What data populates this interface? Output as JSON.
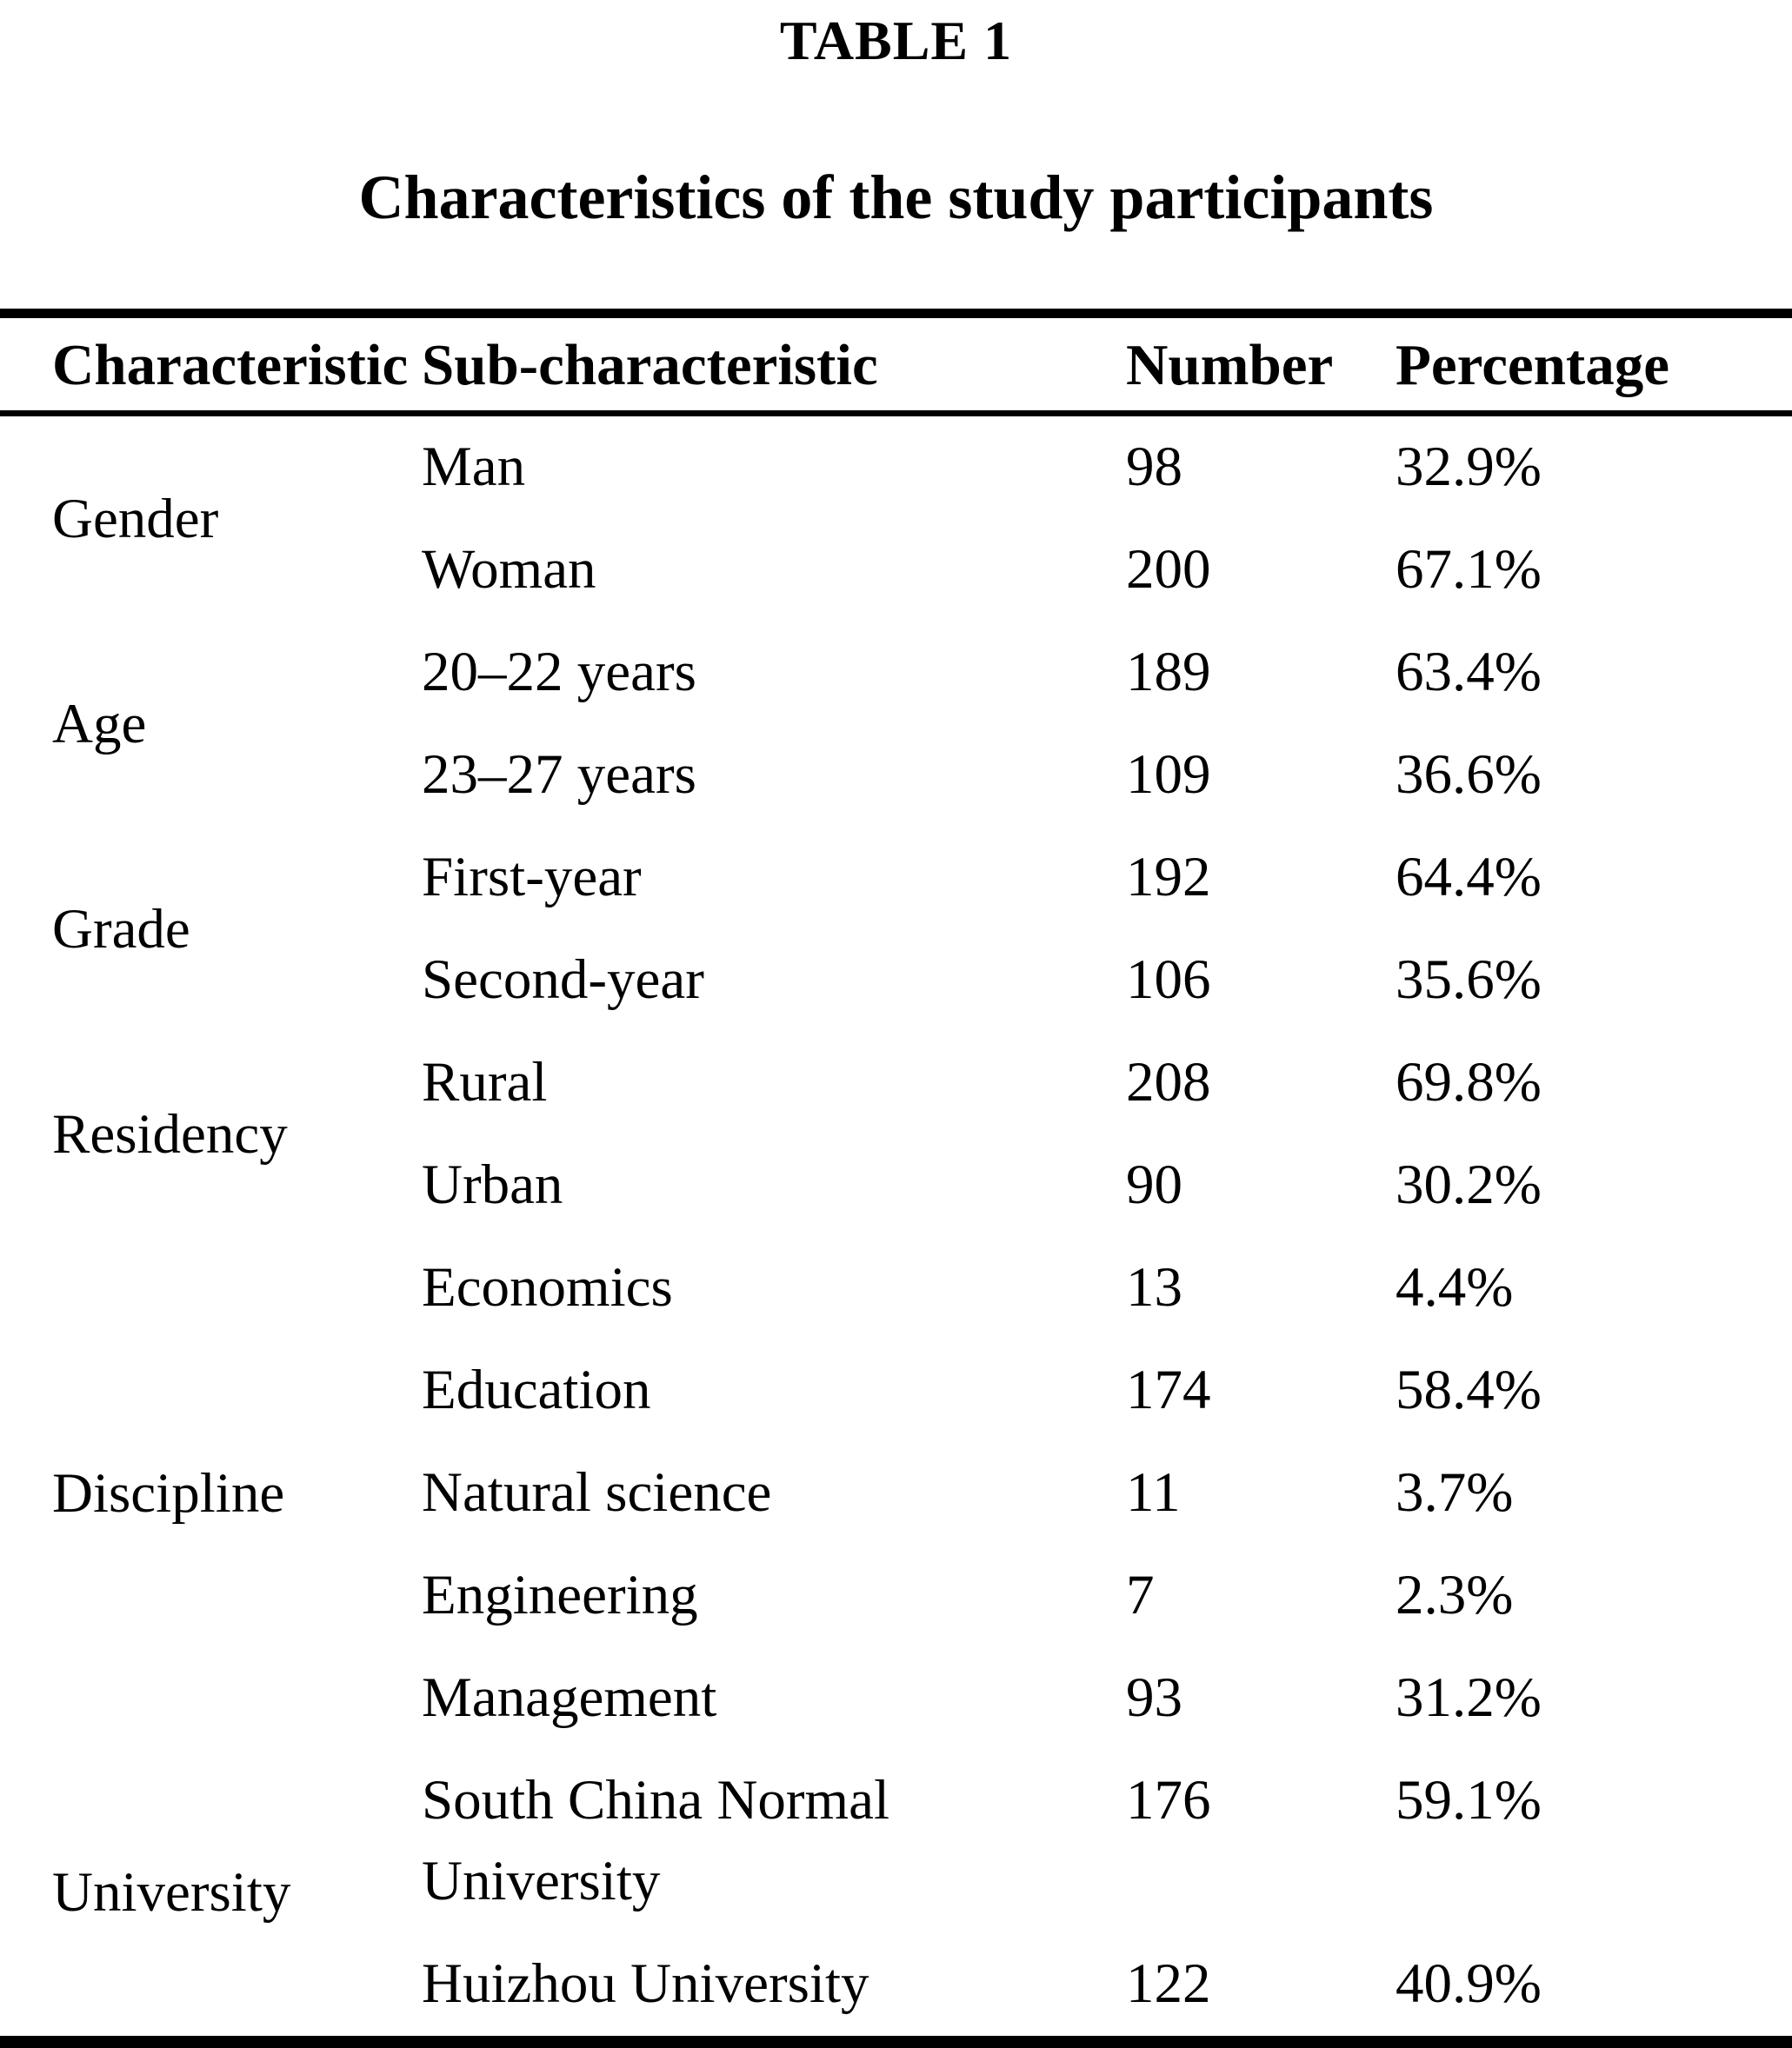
{
  "title": "TABLE 1",
  "subtitle": "Characteristics of the study participants",
  "table": {
    "columns": [
      "Characteristic",
      "Sub-characteristic",
      "Number",
      "Percentage"
    ],
    "groups": [
      {
        "label": "Gender",
        "rows": [
          {
            "sub": "Man",
            "number": "98",
            "percentage": "32.9%"
          },
          {
            "sub": "Woman",
            "number": "200",
            "percentage": "67.1%"
          }
        ]
      },
      {
        "label": "Age",
        "rows": [
          {
            "sub": "20–22 years",
            "number": "189",
            "percentage": "63.4%"
          },
          {
            "sub": "23–27 years",
            "number": "109",
            "percentage": "36.6%"
          }
        ]
      },
      {
        "label": "Grade",
        "rows": [
          {
            "sub": "First-year",
            "number": "192",
            "percentage": "64.4%"
          },
          {
            "sub": "Second-year",
            "number": "106",
            "percentage": "35.6%"
          }
        ]
      },
      {
        "label": "Residency",
        "rows": [
          {
            "sub": "Rural",
            "number": "208",
            "percentage": "69.8%"
          },
          {
            "sub": "Urban",
            "number": "90",
            "percentage": "30.2%"
          }
        ]
      },
      {
        "label": "Discipline",
        "rows": [
          {
            "sub": "Economics",
            "number": "13",
            "percentage": "4.4%"
          },
          {
            "sub": "Education",
            "number": "174",
            "percentage": "58.4%"
          },
          {
            "sub": "Natural science",
            "number": "11",
            "percentage": "3.7%"
          },
          {
            "sub": "Engineering",
            "number": "7",
            "percentage": "2.3%"
          },
          {
            "sub": "Management",
            "number": "93",
            "percentage": "31.2%"
          }
        ]
      },
      {
        "label": "University",
        "rows": [
          {
            "sub": "South China Normal University",
            "number": "176",
            "percentage": "59.1%"
          },
          {
            "sub": "Huizhou University",
            "number": "122",
            "percentage": "40.9%"
          }
        ]
      }
    ]
  }
}
